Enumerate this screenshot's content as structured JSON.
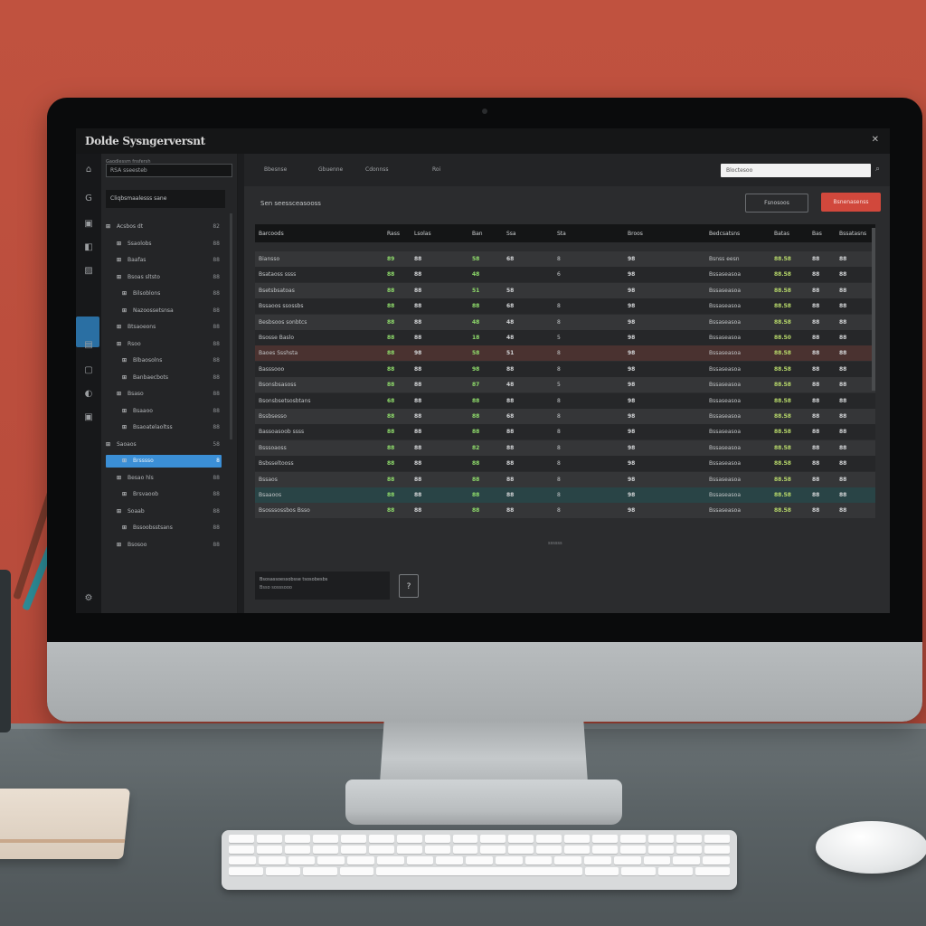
{
  "app": {
    "title": "Dolde Sysngerversnt",
    "close_icon": "close-icon"
  },
  "sidebar": {
    "header": "Gaodlessm fnsfersh",
    "search_value": "RSA sseesteb",
    "top_item": "Cliqbsmaalesss  sane",
    "items": [
      {
        "label": "Acsbos dt",
        "count": "82"
      },
      {
        "label": "Ssaolobs",
        "count": "88"
      },
      {
        "label": "Baafas",
        "count": "88"
      },
      {
        "label": "Bsoas sltsto",
        "count": "88"
      },
      {
        "label": "Bilsoblons",
        "count": "88"
      },
      {
        "label": "Nazoossetsnsa",
        "count": "88"
      },
      {
        "label": "Btsaoeons",
        "count": "88"
      },
      {
        "label": "Rsoo",
        "count": "88"
      },
      {
        "label": "Blbaosolns",
        "count": "88"
      },
      {
        "label": "Banbaecbots",
        "count": "88"
      },
      {
        "label": "Bsaso",
        "count": "88"
      },
      {
        "label": "Bsaaoo",
        "count": "88"
      },
      {
        "label": "Bsaoatelaoltss",
        "count": "88"
      },
      {
        "label": "Saoaos",
        "count": "58"
      },
      {
        "label": "Brsssso",
        "count": "8"
      },
      {
        "label": "Besao hls",
        "count": "88"
      },
      {
        "label": "Brsvaoob",
        "count": "88"
      },
      {
        "label": "Soaab",
        "count": "88"
      },
      {
        "label": "Bssoobsstsans",
        "count": "88"
      },
      {
        "label": "Bsosoo",
        "count": "88"
      }
    ],
    "selected_index": 14
  },
  "toolbar": {
    "items": [
      "Bbesnse",
      "Gbuenne",
      "Cdonnss",
      "Roi"
    ],
    "search_value": "Bloctesoo"
  },
  "content": {
    "heading": "Sen seessceasooss",
    "secondary_button": "Fsnosoos",
    "primary_button": "Bsnenasenss",
    "columns": [
      "Barcoods",
      "Rass",
      "Lsolas",
      "Ban",
      "Ssa",
      "Sta",
      "Broos",
      "Bedcsatsns",
      "Batas",
      "Bas",
      "Bssatasns"
    ],
    "rows": [
      [
        "Biansso",
        "89",
        "88",
        "58",
        "68",
        "8",
        "98",
        "Bsnss eesn",
        "88.58",
        "88",
        "88"
      ],
      [
        "Bsataoss ssss",
        "88",
        "88",
        "48",
        "",
        "6",
        "98",
        "Bssaseasoa",
        "88.58",
        "88",
        "88"
      ],
      [
        "Bsetsbsatoas",
        "88",
        "88",
        "51",
        "58",
        "",
        "98",
        "Bssaseasoa",
        "88.58",
        "88",
        "88"
      ],
      [
        "Bssaoos ssossbs",
        "88",
        "88",
        "88",
        "68",
        "8",
        "98",
        "Bssaseasoa",
        "88.58",
        "88",
        "88"
      ],
      [
        "Besbsoos sonbtcs",
        "88",
        "88",
        "48",
        "48",
        "8",
        "98",
        "Bssaseasoa",
        "88.58",
        "88",
        "88"
      ],
      [
        "Bsosse Baslo",
        "88",
        "88",
        "18",
        "48",
        "5",
        "98",
        "Bssaseasoa",
        "88.50",
        "88",
        "88"
      ],
      [
        "Baoes Ssshsta",
        "88",
        "98",
        "58",
        "51",
        "8",
        "98",
        "Bssaseasoa",
        "88.58",
        "88",
        "88"
      ],
      [
        "Basssooo",
        "88",
        "88",
        "98",
        "88",
        "8",
        "98",
        "Bssaseasoa",
        "88.58",
        "88",
        "88"
      ],
      [
        "Bsonsbsasoss",
        "88",
        "88",
        "87",
        "48",
        "5",
        "98",
        "Bssaseasoa",
        "88.58",
        "88",
        "88"
      ],
      [
        "Bsonsbsetsosbtans",
        "68",
        "88",
        "88",
        "88",
        "8",
        "98",
        "Bssaseasoa",
        "88.58",
        "88",
        "88"
      ],
      [
        "Bssbsesso",
        "88",
        "88",
        "88",
        "68",
        "8",
        "98",
        "Bssaseasoa",
        "88.58",
        "88",
        "88"
      ],
      [
        "Bassoasoob  ssss",
        "88",
        "88",
        "88",
        "88",
        "8",
        "98",
        "Bssaseasoa",
        "88.58",
        "88",
        "88"
      ],
      [
        "Bsssoaoss",
        "88",
        "88",
        "82",
        "88",
        "8",
        "98",
        "Bssaseasoa",
        "88.58",
        "88",
        "88"
      ],
      [
        "Bsbsseltooss",
        "88",
        "88",
        "88",
        "88",
        "8",
        "98",
        "Bssaseasoa",
        "88.58",
        "88",
        "88"
      ],
      [
        "Bssaos",
        "88",
        "88",
        "88",
        "88",
        "8",
        "98",
        "Bssaseasoa",
        "88.58",
        "88",
        "88"
      ],
      [
        "Bsaaoos",
        "88",
        "88",
        "88",
        "88",
        "8",
        "98",
        "Bssaseasoa",
        "88.58",
        "88",
        "88"
      ],
      [
        "Bsosssossbos  Bsso",
        "88",
        "88",
        "88",
        "88",
        "8",
        "98",
        "Bssaseasoa",
        "88.58",
        "88",
        "88"
      ]
    ],
    "highlight_red_row": 6,
    "highlight_teal_row": 15,
    "pager_text": "ssssss",
    "info_line1": "Bsosassoessobsse  tsosobesbs",
    "info_line2": "Bsso sosssooo",
    "info_button": "?"
  },
  "colors": {
    "wall": "#c0523f",
    "accent_blue": "#3b8fd6",
    "accent_red": "#d1483c",
    "value_green": "#8fdc6b"
  }
}
